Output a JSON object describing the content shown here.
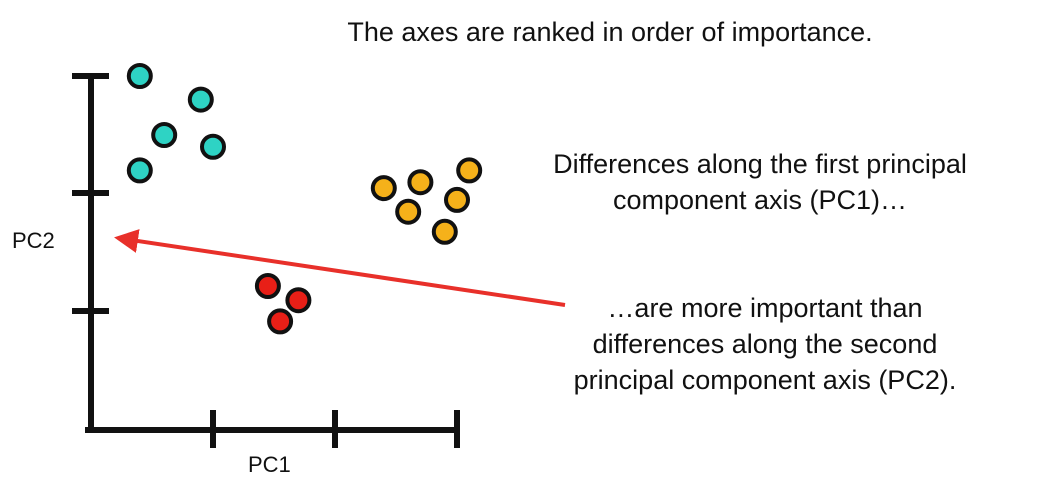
{
  "title": "The axes are ranked in order of importance.",
  "note_pc1": [
    "Differences along the first principal",
    "component axis (PC1)…"
  ],
  "note_pc2": [
    "…are more important than",
    "differences along the second",
    "principal component axis (PC2)."
  ],
  "axes": {
    "x_label": "PC1",
    "y_label": "PC2"
  },
  "colors": {
    "teal": "#2ed3c4",
    "orange": "#f5b11a",
    "red": "#e81f17",
    "arrow": "#e8302a",
    "axis": "#111111"
  },
  "chart_data": {
    "type": "scatter",
    "xlabel": "PC1",
    "ylabel": "PC2",
    "xlim": [
      0,
      3
    ],
    "ylim": [
      0,
      3
    ],
    "series": [
      {
        "color": "teal",
        "x": [
          0.4,
          0.9,
          0.6,
          1.0,
          0.4
        ],
        "y": [
          3.0,
          2.8,
          2.5,
          2.4,
          2.2
        ]
      },
      {
        "color": "orange",
        "x": [
          3.1,
          2.4,
          2.7,
          3.0,
          2.6,
          2.9
        ],
        "y": [
          2.2,
          2.05,
          2.1,
          1.95,
          1.85,
          1.68
        ]
      },
      {
        "color": "red",
        "x": [
          1.45,
          1.7,
          1.55
        ],
        "y": [
          1.22,
          1.1,
          0.92
        ]
      }
    ]
  }
}
